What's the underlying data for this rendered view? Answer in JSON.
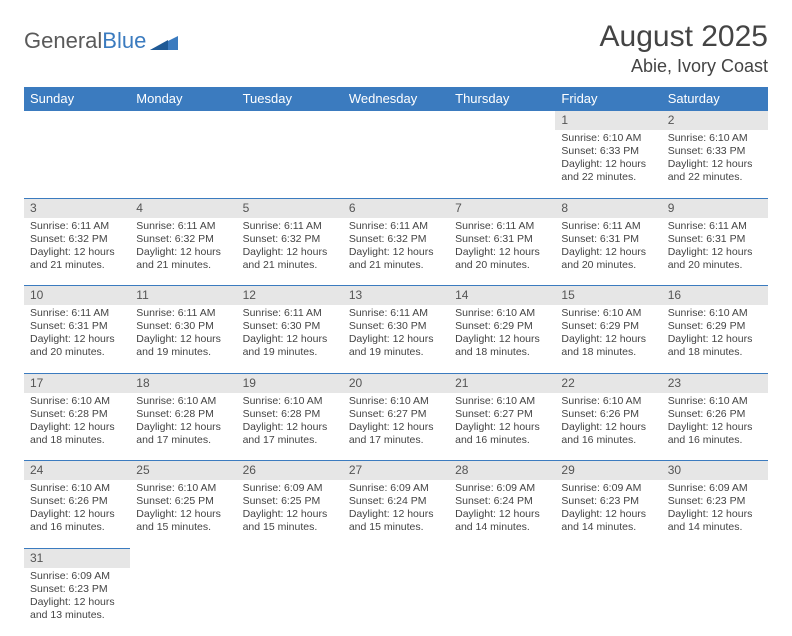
{
  "logo": {
    "textGeneral": "General",
    "textBlue": "Blue"
  },
  "title": "August 2025",
  "location": "Abie, Ivory Coast",
  "colors": {
    "headerBg": "#3b7bbf",
    "headerText": "#ffffff",
    "dayNumBg": "#e6e6e6",
    "borderTop": "#3b7bbf",
    "bodyText": "#444444"
  },
  "dayHeaders": [
    "Sunday",
    "Monday",
    "Tuesday",
    "Wednesday",
    "Thursday",
    "Friday",
    "Saturday"
  ],
  "weeks": [
    [
      {
        "n": "",
        "sr": "",
        "ss": "",
        "dl": ""
      },
      {
        "n": "",
        "sr": "",
        "ss": "",
        "dl": ""
      },
      {
        "n": "",
        "sr": "",
        "ss": "",
        "dl": ""
      },
      {
        "n": "",
        "sr": "",
        "ss": "",
        "dl": ""
      },
      {
        "n": "",
        "sr": "",
        "ss": "",
        "dl": ""
      },
      {
        "n": "1",
        "sr": "Sunrise: 6:10 AM",
        "ss": "Sunset: 6:33 PM",
        "dl": "Daylight: 12 hours and 22 minutes."
      },
      {
        "n": "2",
        "sr": "Sunrise: 6:10 AM",
        "ss": "Sunset: 6:33 PM",
        "dl": "Daylight: 12 hours and 22 minutes."
      }
    ],
    [
      {
        "n": "3",
        "sr": "Sunrise: 6:11 AM",
        "ss": "Sunset: 6:32 PM",
        "dl": "Daylight: 12 hours and 21 minutes."
      },
      {
        "n": "4",
        "sr": "Sunrise: 6:11 AM",
        "ss": "Sunset: 6:32 PM",
        "dl": "Daylight: 12 hours and 21 minutes."
      },
      {
        "n": "5",
        "sr": "Sunrise: 6:11 AM",
        "ss": "Sunset: 6:32 PM",
        "dl": "Daylight: 12 hours and 21 minutes."
      },
      {
        "n": "6",
        "sr": "Sunrise: 6:11 AM",
        "ss": "Sunset: 6:32 PM",
        "dl": "Daylight: 12 hours and 21 minutes."
      },
      {
        "n": "7",
        "sr": "Sunrise: 6:11 AM",
        "ss": "Sunset: 6:31 PM",
        "dl": "Daylight: 12 hours and 20 minutes."
      },
      {
        "n": "8",
        "sr": "Sunrise: 6:11 AM",
        "ss": "Sunset: 6:31 PM",
        "dl": "Daylight: 12 hours and 20 minutes."
      },
      {
        "n": "9",
        "sr": "Sunrise: 6:11 AM",
        "ss": "Sunset: 6:31 PM",
        "dl": "Daylight: 12 hours and 20 minutes."
      }
    ],
    [
      {
        "n": "10",
        "sr": "Sunrise: 6:11 AM",
        "ss": "Sunset: 6:31 PM",
        "dl": "Daylight: 12 hours and 20 minutes."
      },
      {
        "n": "11",
        "sr": "Sunrise: 6:11 AM",
        "ss": "Sunset: 6:30 PM",
        "dl": "Daylight: 12 hours and 19 minutes."
      },
      {
        "n": "12",
        "sr": "Sunrise: 6:11 AM",
        "ss": "Sunset: 6:30 PM",
        "dl": "Daylight: 12 hours and 19 minutes."
      },
      {
        "n": "13",
        "sr": "Sunrise: 6:11 AM",
        "ss": "Sunset: 6:30 PM",
        "dl": "Daylight: 12 hours and 19 minutes."
      },
      {
        "n": "14",
        "sr": "Sunrise: 6:10 AM",
        "ss": "Sunset: 6:29 PM",
        "dl": "Daylight: 12 hours and 18 minutes."
      },
      {
        "n": "15",
        "sr": "Sunrise: 6:10 AM",
        "ss": "Sunset: 6:29 PM",
        "dl": "Daylight: 12 hours and 18 minutes."
      },
      {
        "n": "16",
        "sr": "Sunrise: 6:10 AM",
        "ss": "Sunset: 6:29 PM",
        "dl": "Daylight: 12 hours and 18 minutes."
      }
    ],
    [
      {
        "n": "17",
        "sr": "Sunrise: 6:10 AM",
        "ss": "Sunset: 6:28 PM",
        "dl": "Daylight: 12 hours and 18 minutes."
      },
      {
        "n": "18",
        "sr": "Sunrise: 6:10 AM",
        "ss": "Sunset: 6:28 PM",
        "dl": "Daylight: 12 hours and 17 minutes."
      },
      {
        "n": "19",
        "sr": "Sunrise: 6:10 AM",
        "ss": "Sunset: 6:28 PM",
        "dl": "Daylight: 12 hours and 17 minutes."
      },
      {
        "n": "20",
        "sr": "Sunrise: 6:10 AM",
        "ss": "Sunset: 6:27 PM",
        "dl": "Daylight: 12 hours and 17 minutes."
      },
      {
        "n": "21",
        "sr": "Sunrise: 6:10 AM",
        "ss": "Sunset: 6:27 PM",
        "dl": "Daylight: 12 hours and 16 minutes."
      },
      {
        "n": "22",
        "sr": "Sunrise: 6:10 AM",
        "ss": "Sunset: 6:26 PM",
        "dl": "Daylight: 12 hours and 16 minutes."
      },
      {
        "n": "23",
        "sr": "Sunrise: 6:10 AM",
        "ss": "Sunset: 6:26 PM",
        "dl": "Daylight: 12 hours and 16 minutes."
      }
    ],
    [
      {
        "n": "24",
        "sr": "Sunrise: 6:10 AM",
        "ss": "Sunset: 6:26 PM",
        "dl": "Daylight: 12 hours and 16 minutes."
      },
      {
        "n": "25",
        "sr": "Sunrise: 6:10 AM",
        "ss": "Sunset: 6:25 PM",
        "dl": "Daylight: 12 hours and 15 minutes."
      },
      {
        "n": "26",
        "sr": "Sunrise: 6:09 AM",
        "ss": "Sunset: 6:25 PM",
        "dl": "Daylight: 12 hours and 15 minutes."
      },
      {
        "n": "27",
        "sr": "Sunrise: 6:09 AM",
        "ss": "Sunset: 6:24 PM",
        "dl": "Daylight: 12 hours and 15 minutes."
      },
      {
        "n": "28",
        "sr": "Sunrise: 6:09 AM",
        "ss": "Sunset: 6:24 PM",
        "dl": "Daylight: 12 hours and 14 minutes."
      },
      {
        "n": "29",
        "sr": "Sunrise: 6:09 AM",
        "ss": "Sunset: 6:23 PM",
        "dl": "Daylight: 12 hours and 14 minutes."
      },
      {
        "n": "30",
        "sr": "Sunrise: 6:09 AM",
        "ss": "Sunset: 6:23 PM",
        "dl": "Daylight: 12 hours and 14 minutes."
      }
    ],
    [
      {
        "n": "31",
        "sr": "Sunrise: 6:09 AM",
        "ss": "Sunset: 6:23 PM",
        "dl": "Daylight: 12 hours and 13 minutes."
      },
      {
        "n": "",
        "sr": "",
        "ss": "",
        "dl": ""
      },
      {
        "n": "",
        "sr": "",
        "ss": "",
        "dl": ""
      },
      {
        "n": "",
        "sr": "",
        "ss": "",
        "dl": ""
      },
      {
        "n": "",
        "sr": "",
        "ss": "",
        "dl": ""
      },
      {
        "n": "",
        "sr": "",
        "ss": "",
        "dl": ""
      },
      {
        "n": "",
        "sr": "",
        "ss": "",
        "dl": ""
      }
    ]
  ]
}
